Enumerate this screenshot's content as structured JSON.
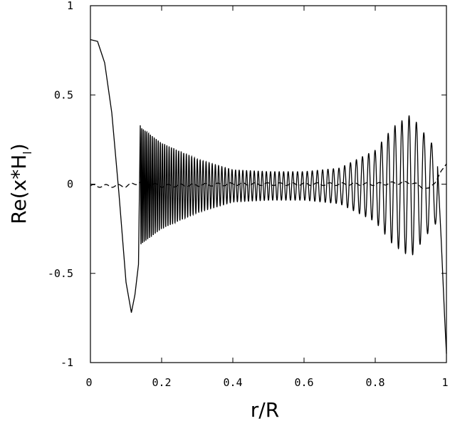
{
  "chart_data": {
    "type": "line",
    "xlabel": "r/R",
    "ylabel": "Re(x*H",
    "ylabel_sub": "l",
    "ylabel_close": ")",
    "xlim": [
      0,
      1
    ],
    "ylim": [
      -1,
      1
    ],
    "xticks": [
      {
        "value": 0,
        "label": "0"
      },
      {
        "value": 0.2,
        "label": "0.2"
      },
      {
        "value": 0.4,
        "label": "0.4"
      },
      {
        "value": 0.6,
        "label": "0.6"
      },
      {
        "value": 0.8,
        "label": "0.8"
      },
      {
        "value": 1,
        "label": "1"
      }
    ],
    "yticks": [
      {
        "value": 1,
        "label": "1"
      },
      {
        "value": 0.5,
        "label": "0.5"
      },
      {
        "value": 0,
        "label": "0"
      },
      {
        "value": -0.5,
        "label": "-0.5"
      },
      {
        "value": -1,
        "label": "-1"
      }
    ],
    "grid": false,
    "legend": "none",
    "series": [
      {
        "style": "solid",
        "description_points": {
          "x": [
            0,
            0.02,
            0.04,
            0.06,
            0.08,
            0.1,
            0.115,
            0.125,
            0.135,
            0.14
          ],
          "y": [
            0.81,
            0.8,
            0.68,
            0.4,
            -0.05,
            -0.55,
            -0.72,
            -0.62,
            -0.45,
            0.33
          ]
        },
        "oscillation": {
          "x_start": 0.14,
          "x_end": 0.975,
          "envelope_x": [
            0.14,
            0.2,
            0.3,
            0.4,
            0.5,
            0.6,
            0.7,
            0.8,
            0.85,
            0.9,
            0.95,
            0.975
          ],
          "envelope_amp": [
            0.33,
            0.24,
            0.15,
            0.09,
            0.08,
            0.08,
            0.1,
            0.2,
            0.33,
            0.4,
            0.26,
            0.2
          ],
          "cycles_per_unit_start": 250,
          "cycles_per_unit_end": 45
        },
        "tail": {
          "x": [
            0.975,
            0.985,
            0.995,
            1.0
          ],
          "y": [
            0.1,
            -0.3,
            -0.75,
            -0.95
          ]
        }
      },
      {
        "style": "dashed",
        "x": [
          0,
          0.1,
          0.14,
          0.2,
          0.4,
          0.6,
          0.8,
          0.9,
          0.95,
          0.97,
          0.99,
          1.0
        ],
        "y": [
          -0.01,
          -0.01,
          0.01,
          -0.01,
          0.0,
          0.0,
          0.0,
          0.01,
          -0.03,
          0.02,
          0.08,
          0.12
        ]
      }
    ]
  }
}
